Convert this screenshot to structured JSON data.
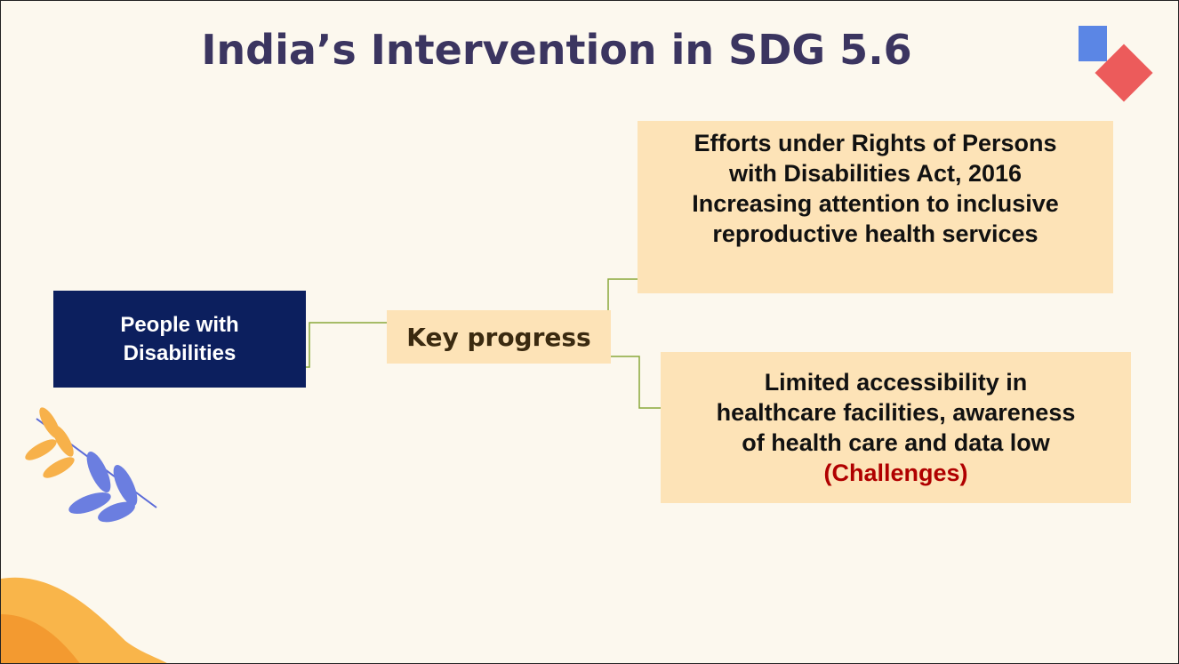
{
  "title": "India’s Intervention in SDG 5.6",
  "nodes": [
    {
      "label": "People with Disabilities"
    },
    {
      "label": "Key progress"
    },
    {
      "lines": [
        "Efforts under Rights of Persons",
        "with Disabilities Act, 2016",
        "Increasing attention to inclusive",
        "reproductive health services"
      ]
    },
    {
      "lines": [
        "Limited accessibility in",
        "healthcare facilities, awareness",
        "of health care and data low"
      ],
      "tag": "(Challenges)"
    }
  ]
}
